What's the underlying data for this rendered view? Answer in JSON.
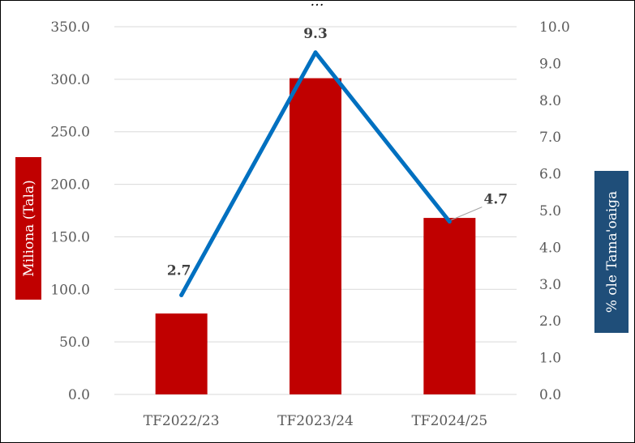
{
  "chart_data": {
    "type": "bar",
    "title": "",
    "title_fragment": "…",
    "categories": [
      "TF2022/23",
      "TF2023/24",
      "TF2024/25"
    ],
    "series": [
      {
        "axis": "left",
        "type": "bar",
        "values": [
          77,
          301,
          168
        ],
        "color": "#C00000"
      },
      {
        "axis": "right",
        "type": "line",
        "values": [
          2.7,
          9.3,
          4.7
        ],
        "color": "#0070C0",
        "data_labels": [
          "2.7",
          "9.3",
          "4.7"
        ]
      }
    ],
    "ylabel": "Miliona (Tala)",
    "ylabel_bg": "#C00000",
    "y2label": "% ole Tama'oaiga",
    "y2label_bg": "#1F4E79",
    "ylim": [
      0,
      350
    ],
    "y2lim": [
      0,
      10
    ],
    "yticks": [
      "0.0",
      "50.0",
      "100.0",
      "150.0",
      "200.0",
      "250.0",
      "300.0",
      "350.0"
    ],
    "y2ticks": [
      "0.0",
      "1.0",
      "2.0",
      "3.0",
      "4.0",
      "5.0",
      "6.0",
      "7.0",
      "8.0",
      "9.0",
      "10.0"
    ],
    "grid": true,
    "legend": "none"
  }
}
